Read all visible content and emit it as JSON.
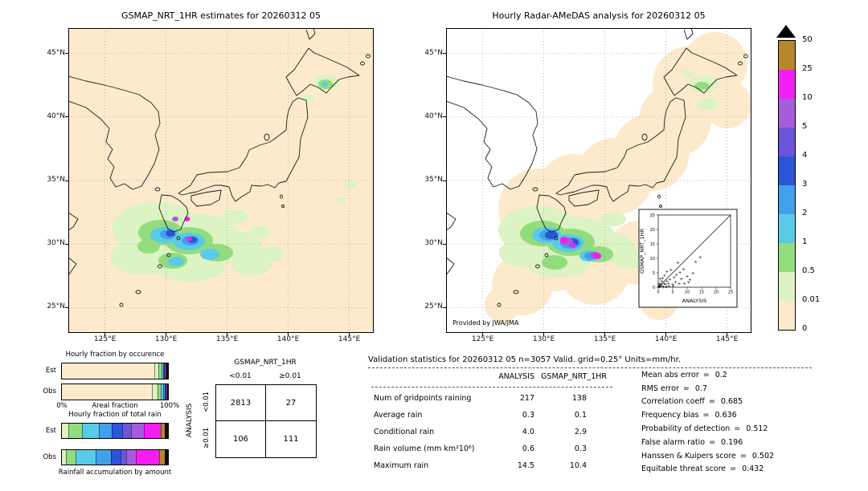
{
  "axes": {
    "lat_ticks": [
      {
        "label": "45°N",
        "value": 45
      },
      {
        "label": "40°N",
        "value": 40
      },
      {
        "label": "35°N",
        "value": 35
      },
      {
        "label": "30°N",
        "value": 30
      },
      {
        "label": "25°N",
        "value": 25
      }
    ],
    "lon_ticks": [
      {
        "label": "125°E",
        "value": 125
      },
      {
        "label": "130°E",
        "value": 130
      },
      {
        "label": "135°E",
        "value": 135
      },
      {
        "label": "140°E",
        "value": 140
      },
      {
        "label": "145°E",
        "value": 145
      }
    ]
  },
  "colorbar": {
    "labels": [
      "50",
      "25",
      "10",
      "5",
      "4",
      "3",
      "2",
      "1",
      "0.5",
      "0.01",
      "0"
    ],
    "colors_top_to_bottom": [
      "#b8862a",
      "#f51df5",
      "#a55ddc",
      "#6a55dc",
      "#2a55d8",
      "#41a0ea",
      "#59cbe8",
      "#93dc7e",
      "#dcf3c3",
      "#fdeacd"
    ],
    "overflow_marker": "black-up-triangle",
    "units": "mm/hr"
  },
  "stats": {
    "title": "Validation statistics for 20260312 05  n=3057 Valid. grid=0.25° Units=mm/hr.",
    "col_headers": [
      "ANALYSIS",
      "GSMAP_NRT_1HR"
    ],
    "rows": [
      {
        "label": "Num of gridpoints raining",
        "analysis": "217",
        "gsmap": "138"
      },
      {
        "label": "Average rain",
        "analysis": "0.3",
        "gsmap": "0.1"
      },
      {
        "label": "Conditional rain",
        "analysis": "4.0",
        "gsmap": "2.9"
      },
      {
        "label": "Rain volume (mm km²10⁶)",
        "analysis": "0.6",
        "gsmap": "0.3"
      },
      {
        "label": "Maximum rain",
        "analysis": "14.5",
        "gsmap": "10.4"
      }
    ],
    "eq": "=",
    "metrics": [
      {
        "label": "Mean abs error",
        "value": "0.2"
      },
      {
        "label": "RMS error",
        "value": "0.7"
      },
      {
        "label": "Correlation coeff",
        "value": "0.685"
      },
      {
        "label": "Frequency bias",
        "value": "0.636"
      },
      {
        "label": "Probability of detection",
        "value": "0.512"
      },
      {
        "label": "False alarm ratio",
        "value": "0.196"
      },
      {
        "label": "Hanssen & Kuipers score",
        "value": "0.502"
      },
      {
        "label": "Equitable threat score",
        "value": "0.432"
      }
    ]
  },
  "chart_data": [
    {
      "type": "heatmap",
      "panel": "left",
      "title": "GSMAP_NRT_1HR estimates for 20260312 05",
      "xlim": [
        122,
        147
      ],
      "ylim": [
        23,
        47
      ],
      "x_ticks": [
        "125°E",
        "130°E",
        "135°E",
        "140°E",
        "145°E"
      ],
      "y_ticks": [
        "45°N",
        "40°N",
        "35°N",
        "30°N",
        "25°N"
      ],
      "units": "mm/hr",
      "levels": [
        0,
        0.01,
        0.5,
        1,
        2,
        3,
        4,
        5,
        10,
        25,
        50
      ],
      "note": "GSMaP satellite precipitation estimate over Japan; main rain system south and southwest of Kyushu (about 126-135E, 26-31N) with embedded 1-10 mm/hr cells and isolated 10-25 mm/hr (magenta) pixels; small light-rain patch over western Hokkaido (about 140-142E, 43-44N)"
    },
    {
      "type": "heatmap",
      "panel": "right",
      "title": "Hourly Radar-AMeDAS analysis for 20260312 05",
      "credit": "Provided by JWA/JMA",
      "xlim": [
        122,
        147
      ],
      "ylim": [
        23,
        47
      ],
      "x_ticks": [
        "125°E",
        "130°E",
        "135°E",
        "140°E",
        "145°E"
      ],
      "y_ticks": [
        "45°N",
        "40°N",
        "35°N",
        "30°N",
        "25°N"
      ],
      "units": "mm/hr",
      "levels": [
        0,
        0.01,
        0.5,
        1,
        2,
        3,
        4,
        5,
        10,
        25,
        50
      ],
      "note": "radar analysis; pale-orange background marks radar coverage (0 mm/hr) surrounding the Japanese islands, white outside coverage; rain band south of Kyushu and Shikoku with cells up to 10-25 mm/hr"
    },
    {
      "type": "scatter",
      "title": "gridpoint comparison inset",
      "xlabel": "ANALYSIS",
      "ylabel": "GSMAP_NRT_1HR",
      "xlim": [
        0,
        25
      ],
      "ylim": [
        0,
        25
      ],
      "ticks": [
        "0",
        "5",
        "10",
        "15",
        "20",
        "25"
      ],
      "diagonal_line": true,
      "marker": "+",
      "points": [
        [
          0.2,
          0.1
        ],
        [
          0.3,
          0.6
        ],
        [
          0.5,
          0.2
        ],
        [
          0.5,
          1.3
        ],
        [
          0.7,
          2.8
        ],
        [
          0.8,
          0.4
        ],
        [
          1,
          0.9
        ],
        [
          1.2,
          2.1
        ],
        [
          1.5,
          0.3
        ],
        [
          1.5,
          3.2
        ],
        [
          1.8,
          0.1
        ],
        [
          2,
          1.4
        ],
        [
          2.2,
          4.1
        ],
        [
          2.5,
          0.9
        ],
        [
          2.8,
          0.2
        ],
        [
          3,
          2.2
        ],
        [
          3,
          5.3
        ],
        [
          3.5,
          1.4
        ],
        [
          3.8,
          0.4
        ],
        [
          4,
          2.7
        ],
        [
          4.4,
          6.1
        ],
        [
          5,
          1.1
        ],
        [
          5.2,
          0.3
        ],
        [
          5.5,
          3.4
        ],
        [
          6,
          1.8
        ],
        [
          6.3,
          4.2
        ],
        [
          6.8,
          8.6
        ],
        [
          7.2,
          1.2
        ],
        [
          7.5,
          5.1
        ],
        [
          8,
          2.9
        ],
        [
          8.8,
          6.2
        ],
        [
          9,
          1.4
        ],
        [
          10,
          3.8
        ],
        [
          10.5,
          1.7
        ],
        [
          11,
          2.6
        ],
        [
          12,
          5
        ],
        [
          13,
          8.8
        ],
        [
          14.5,
          10.4
        ]
      ]
    },
    {
      "type": "bar",
      "stacked": true,
      "orientation": "horizontal",
      "title": "Hourly fraction by occurence",
      "categories": [
        "Est",
        "Obs"
      ],
      "axis_left_label": "0%",
      "axis_center_label": "Areal fraction",
      "axis_right_label": "100%",
      "segments": {
        "est": [
          {
            "color": "#fdeacd",
            "pct": 87
          },
          {
            "color": "#dcf3c3",
            "pct": 4.5
          },
          {
            "color": "#93dc7e",
            "pct": 2.5
          },
          {
            "color": "#59cbe8",
            "pct": 1.5
          },
          {
            "color": "#41a0ea",
            "pct": 1
          },
          {
            "color": "#2a55d8",
            "pct": 0.8
          },
          {
            "color": "#a55ddc",
            "pct": 0.6
          },
          {
            "color": "#f51df5",
            "pct": 0.6
          },
          {
            "color": "#111111",
            "pct": 1.5
          }
        ],
        "obs": [
          {
            "color": "#fdeacd",
            "pct": 85
          },
          {
            "color": "#dcf3c3",
            "pct": 5.5
          },
          {
            "color": "#93dc7e",
            "pct": 3
          },
          {
            "color": "#59cbe8",
            "pct": 2
          },
          {
            "color": "#41a0ea",
            "pct": 1.2
          },
          {
            "color": "#2a55d8",
            "pct": 0.9
          },
          {
            "color": "#a55ddc",
            "pct": 0.7
          },
          {
            "color": "#f51df5",
            "pct": 0.7
          },
          {
            "color": "#111111",
            "pct": 1
          }
        ]
      }
    },
    {
      "type": "bar",
      "stacked": true,
      "orientation": "horizontal",
      "title": "Hourly fraction of total rain",
      "caption": "Rainfall accumulation by amount",
      "categories": [
        "Est",
        "Obs"
      ],
      "segments": {
        "est": [
          {
            "color": "#dcf3c3",
            "pct": 6
          },
          {
            "color": "#93dc7e",
            "pct": 13
          },
          {
            "color": "#59cbe8",
            "pct": 16
          },
          {
            "color": "#41a0ea",
            "pct": 12
          },
          {
            "color": "#2a55d8",
            "pct": 10
          },
          {
            "color": "#6a55dc",
            "pct": 8
          },
          {
            "color": "#a55ddc",
            "pct": 12
          },
          {
            "color": "#f51df5",
            "pct": 16
          },
          {
            "color": "#b8862a",
            "pct": 4
          },
          {
            "color": "#111111",
            "pct": 3
          }
        ],
        "obs": [
          {
            "color": "#dcf3c3",
            "pct": 4
          },
          {
            "color": "#93dc7e",
            "pct": 9
          },
          {
            "color": "#59cbe8",
            "pct": 19
          },
          {
            "color": "#41a0ea",
            "pct": 14
          },
          {
            "color": "#2a55d8",
            "pct": 9
          },
          {
            "color": "#6a55dc",
            "pct": 6
          },
          {
            "color": "#a55ddc",
            "pct": 9
          },
          {
            "color": "#f51df5",
            "pct": 22
          },
          {
            "color": "#b8862a",
            "pct": 5
          },
          {
            "color": "#111111",
            "pct": 3
          }
        ]
      }
    },
    {
      "type": "table",
      "title": "Contingency table (number of gridpoints)",
      "col_group": "GSMAP_NRT_1HR",
      "row_group": "ANALYSIS",
      "col_labels": [
        "<0.01",
        "≥0.01"
      ],
      "row_labels": [
        "<0.01",
        "≥0.01"
      ],
      "values": [
        [
          2813,
          27
        ],
        [
          106,
          111
        ]
      ]
    },
    {
      "type": "table",
      "title": "Validation statistics",
      "n": 3057,
      "grid": "0.25°",
      "units": "mm/hr",
      "columns": [
        "ANALYSIS",
        "GSMAP_NRT_1HR"
      ],
      "rows": [
        [
          "Num of gridpoints raining",
          217,
          138
        ],
        [
          "Average rain",
          0.3,
          0.1
        ],
        [
          "Conditional rain",
          4.0,
          2.9
        ],
        [
          "Rain volume (mm km²10⁶)",
          0.6,
          0.3
        ],
        [
          "Maximum rain",
          14.5,
          10.4
        ]
      ],
      "metrics": {
        "Mean abs error": 0.2,
        "RMS error": 0.7,
        "Correlation coeff": 0.685,
        "Frequency bias": 0.636,
        "Probability of detection": 0.512,
        "False alarm ratio": 0.196,
        "Hanssen & Kuipers score": 0.502,
        "Equitable threat score": 0.432
      }
    }
  ]
}
